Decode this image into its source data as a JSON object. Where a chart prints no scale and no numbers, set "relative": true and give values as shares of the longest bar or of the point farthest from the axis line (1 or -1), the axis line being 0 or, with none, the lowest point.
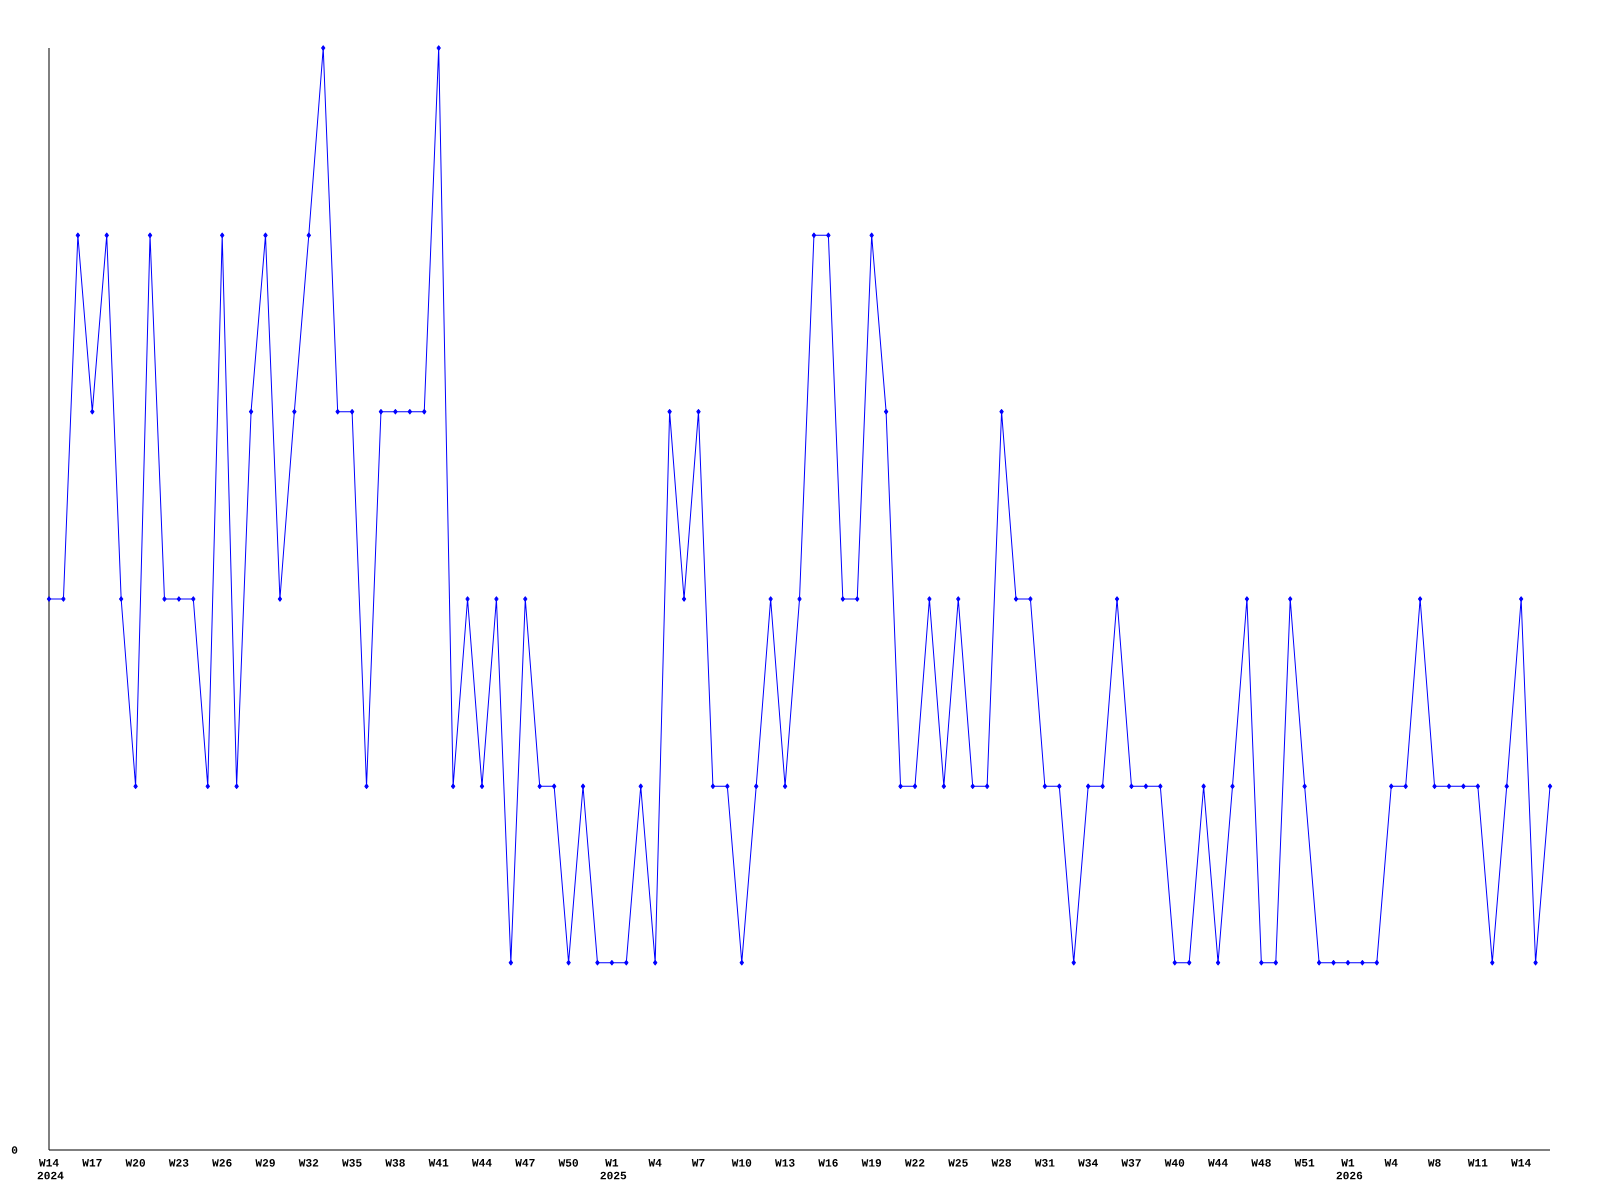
{
  "chart_data": {
    "type": "line",
    "relative": true,
    "color": "#0000ff",
    "marker": "diamond",
    "line_style": "solid",
    "annotations": [
      "0"
    ],
    "categories": [
      "W14 2024",
      null,
      null,
      "W17",
      null,
      null,
      "W20",
      null,
      null,
      "W23",
      null,
      null,
      "W26",
      null,
      null,
      "W29",
      null,
      null,
      "W32",
      null,
      null,
      "W35",
      null,
      null,
      "W38",
      null,
      null,
      "W41",
      null,
      null,
      "W44",
      null,
      null,
      "W47",
      null,
      null,
      "W50",
      null,
      null,
      "W1 2025",
      null,
      null,
      "W4",
      null,
      null,
      "W7",
      null,
      null,
      "W10",
      null,
      null,
      "W13",
      null,
      null,
      "W16",
      null,
      null,
      "W19",
      null,
      null,
      "W22",
      null,
      null,
      "W25",
      null,
      null,
      "W28",
      null,
      null,
      "W31",
      null,
      null,
      "W34",
      null,
      null,
      "W37",
      null,
      null,
      "W40",
      null,
      null,
      "W44",
      null,
      null,
      "W48",
      null,
      null,
      "W51",
      null,
      null,
      "W1 2026",
      null,
      null,
      "W4",
      null,
      null,
      "W8",
      null,
      null,
      "W11",
      null,
      null,
      "W14",
      null,
      null
    ],
    "values": [
      0.5,
      0.5,
      0.83,
      0.67,
      0.83,
      0.5,
      0.33,
      0.83,
      0.5,
      0.5,
      0.5,
      0.33,
      0.83,
      0.33,
      0.67,
      0.83,
      0.5,
      0.67,
      0.83,
      1,
      0.67,
      0.67,
      0.33,
      0.67,
      0.67,
      0.67,
      0.67,
      1,
      0.33,
      0.5,
      0.33,
      0.5,
      0.17,
      0.5,
      0.33,
      0.33,
      0.17,
      0.33,
      0.17,
      0.17,
      0.17,
      0.33,
      0.17,
      0.67,
      0.5,
      0.67,
      0.33,
      0.33,
      0.17,
      0.33,
      0.5,
      0.33,
      0.5,
      0.83,
      0.83,
      0.5,
      0.5,
      0.83,
      0.67,
      0.33,
      0.33,
      0.5,
      0.33,
      0.5,
      0.33,
      0.33,
      0.67,
      0.5,
      0.5,
      0.33,
      0.33,
      0.17,
      0.33,
      0.33,
      0.5,
      0.33,
      0.33,
      0.33,
      0.17,
      0.17,
      0.33,
      0.17,
      0.33,
      0.5,
      0.17,
      0.17,
      0.5,
      0.33,
      0.17,
      0.17,
      0.17,
      0.17,
      0.17,
      0.33,
      0.33,
      0.5,
      0.33,
      0.33,
      0.33,
      0.33,
      0.17,
      0.33,
      0.5,
      0.17,
      0.33
    ]
  }
}
